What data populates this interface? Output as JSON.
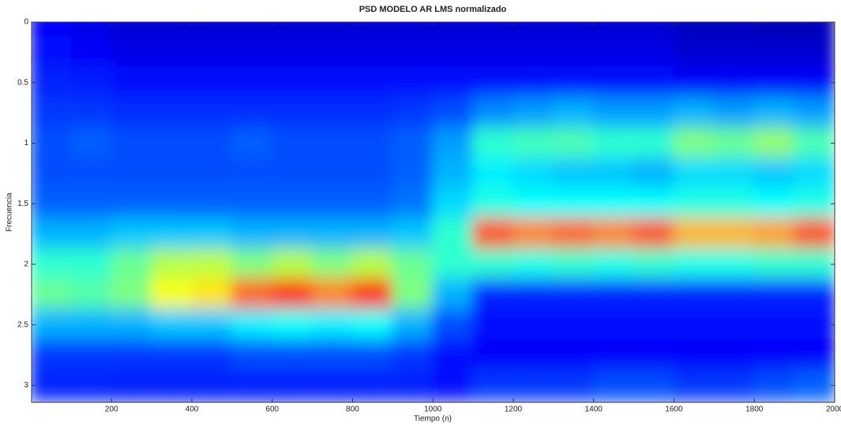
{
  "chart_data": {
    "type": "heatmap",
    "title": "PSD MODELO AR LMS normalizado",
    "x_label": "Tiempo (n)",
    "y_label": "Frecuencia",
    "colormap": "jet",
    "y_reversed": true,
    "xlim": [
      1,
      2000
    ],
    "ylim": [
      0,
      3.14
    ],
    "xticks": [
      200,
      400,
      600,
      800,
      1000,
      1200,
      1400,
      1600,
      1800,
      2000
    ],
    "yticks": [
      0,
      0.5,
      1,
      1.5,
      2,
      2.5,
      3
    ],
    "x": [
      50,
      150,
      250,
      350,
      450,
      550,
      650,
      750,
      850,
      950,
      1050,
      1150,
      1250,
      1350,
      1450,
      1550,
      1650,
      1750,
      1850,
      1950
    ],
    "y": [
      0,
      0.25,
      0.5,
      0.75,
      1,
      1.25,
      1.5,
      1.75,
      2,
      2.25,
      2.5,
      2.75,
      3
    ],
    "z": [
      [
        0.12,
        0.1,
        0.08,
        0.08,
        0.08,
        0.08,
        0.08,
        0.08,
        0.08,
        0.08,
        0.08,
        0.08,
        0.08,
        0.08,
        0.08,
        0.08,
        0.06,
        0.06,
        0.05,
        0.05
      ],
      [
        0.14,
        0.12,
        0.1,
        0.1,
        0.1,
        0.1,
        0.1,
        0.1,
        0.1,
        0.1,
        0.1,
        0.1,
        0.1,
        0.1,
        0.1,
        0.1,
        0.08,
        0.08,
        0.08,
        0.08
      ],
      [
        0.16,
        0.15,
        0.14,
        0.14,
        0.14,
        0.14,
        0.14,
        0.14,
        0.14,
        0.14,
        0.14,
        0.14,
        0.14,
        0.14,
        0.14,
        0.14,
        0.12,
        0.12,
        0.12,
        0.12
      ],
      [
        0.18,
        0.18,
        0.17,
        0.17,
        0.17,
        0.17,
        0.17,
        0.17,
        0.17,
        0.18,
        0.2,
        0.26,
        0.28,
        0.3,
        0.28,
        0.28,
        0.3,
        0.28,
        0.3,
        0.28
      ],
      [
        0.2,
        0.22,
        0.2,
        0.2,
        0.2,
        0.22,
        0.2,
        0.2,
        0.2,
        0.22,
        0.28,
        0.42,
        0.44,
        0.45,
        0.42,
        0.42,
        0.5,
        0.48,
        0.52,
        0.45
      ],
      [
        0.2,
        0.2,
        0.2,
        0.2,
        0.2,
        0.2,
        0.2,
        0.2,
        0.2,
        0.22,
        0.3,
        0.36,
        0.34,
        0.32,
        0.32,
        0.3,
        0.34,
        0.34,
        0.32,
        0.34
      ],
      [
        0.22,
        0.22,
        0.22,
        0.22,
        0.22,
        0.22,
        0.22,
        0.22,
        0.22,
        0.24,
        0.34,
        0.4,
        0.38,
        0.38,
        0.38,
        0.38,
        0.4,
        0.4,
        0.38,
        0.4
      ],
      [
        0.3,
        0.3,
        0.32,
        0.32,
        0.32,
        0.3,
        0.3,
        0.3,
        0.3,
        0.32,
        0.42,
        0.8,
        0.75,
        0.78,
        0.75,
        0.8,
        0.7,
        0.7,
        0.72,
        0.8
      ],
      [
        0.42,
        0.42,
        0.48,
        0.55,
        0.56,
        0.5,
        0.55,
        0.5,
        0.55,
        0.48,
        0.42,
        0.42,
        0.4,
        0.42,
        0.4,
        0.42,
        0.4,
        0.4,
        0.42,
        0.42
      ],
      [
        0.48,
        0.46,
        0.5,
        0.62,
        0.65,
        0.78,
        0.85,
        0.75,
        0.85,
        0.5,
        0.3,
        0.16,
        0.16,
        0.16,
        0.16,
        0.16,
        0.16,
        0.16,
        0.16,
        0.16
      ],
      [
        0.3,
        0.3,
        0.3,
        0.32,
        0.32,
        0.36,
        0.38,
        0.36,
        0.38,
        0.3,
        0.2,
        0.14,
        0.14,
        0.14,
        0.14,
        0.14,
        0.14,
        0.14,
        0.14,
        0.14
      ],
      [
        0.18,
        0.18,
        0.18,
        0.18,
        0.18,
        0.2,
        0.2,
        0.2,
        0.2,
        0.18,
        0.14,
        0.12,
        0.12,
        0.12,
        0.12,
        0.12,
        0.12,
        0.12,
        0.12,
        0.12
      ],
      [
        0.16,
        0.16,
        0.15,
        0.15,
        0.15,
        0.15,
        0.15,
        0.15,
        0.15,
        0.15,
        0.14,
        0.18,
        0.18,
        0.18,
        0.2,
        0.2,
        0.18,
        0.18,
        0.2,
        0.22
      ]
    ]
  }
}
